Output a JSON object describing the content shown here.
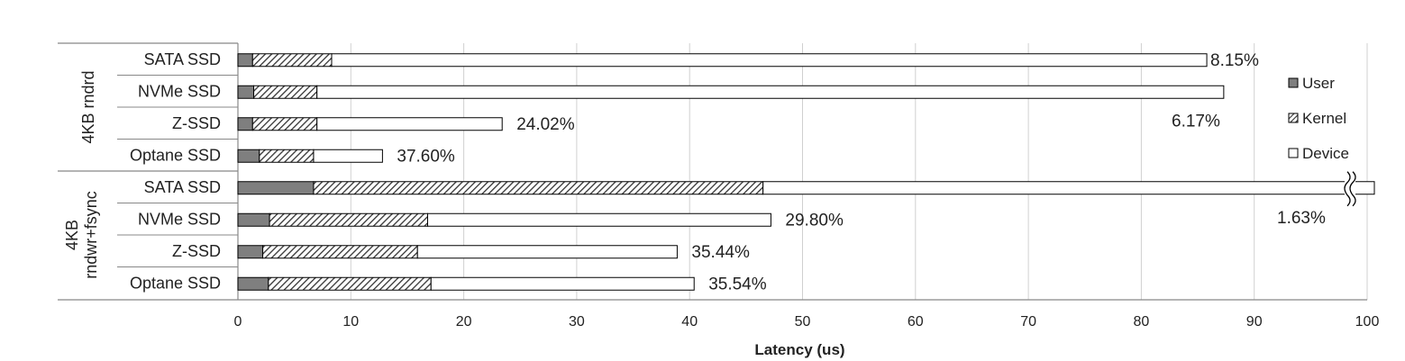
{
  "chart_data": {
    "type": "bar",
    "orientation": "horizontal",
    "stacked": true,
    "xlabel": "Latency (us)",
    "xlim": [
      0,
      100
    ],
    "xticks": [
      0,
      10,
      20,
      30,
      40,
      50,
      60,
      70,
      80,
      90,
      100
    ],
    "grid": "vertical",
    "legend_position": "right",
    "series_names": [
      "User",
      "Kernel",
      "Device"
    ],
    "groups": [
      {
        "label": "4KB rndrd",
        "bars": [
          {
            "category": "SATA SSD",
            "user": 1.3,
            "kernel": 7.0,
            "device": 77.5,
            "annotation": "8.15%",
            "broken": false
          },
          {
            "category": "NVMe SSD",
            "user": 1.4,
            "kernel": 5.6,
            "device": 80.3,
            "annotation": "6.17%",
            "broken": false
          },
          {
            "category": "Z-SSD",
            "user": 1.3,
            "kernel": 5.7,
            "device": 16.4,
            "annotation": "24.02%",
            "broken": false
          },
          {
            "category": "Optane SSD",
            "user": 1.9,
            "kernel": 4.8,
            "device": 6.1,
            "annotation": "37.60%",
            "broken": false
          }
        ]
      },
      {
        "label": "4KB rndwr+fsync",
        "bars": [
          {
            "category": "SATA SSD",
            "user": 6.7,
            "kernel": 39.8,
            "device": 53.5,
            "annotation": "1.63%",
            "broken": true
          },
          {
            "category": "NVMe SSD",
            "user": 2.8,
            "kernel": 14.0,
            "device": 30.4,
            "annotation": "29.80%",
            "broken": false
          },
          {
            "category": "Z-SSD",
            "user": 2.2,
            "kernel": 13.7,
            "device": 23.0,
            "annotation": "35.44%",
            "broken": false
          },
          {
            "category": "Optane SSD",
            "user": 2.7,
            "kernel": 14.4,
            "device": 23.3,
            "annotation": "35.54%",
            "broken": false
          }
        ]
      }
    ]
  },
  "colors": {
    "user": "#7f7f7f",
    "kernel_hatch": "#333333",
    "device": "#ffffff",
    "outline": "#000000",
    "grid": "#d0d0d0",
    "axis": "#888888"
  }
}
